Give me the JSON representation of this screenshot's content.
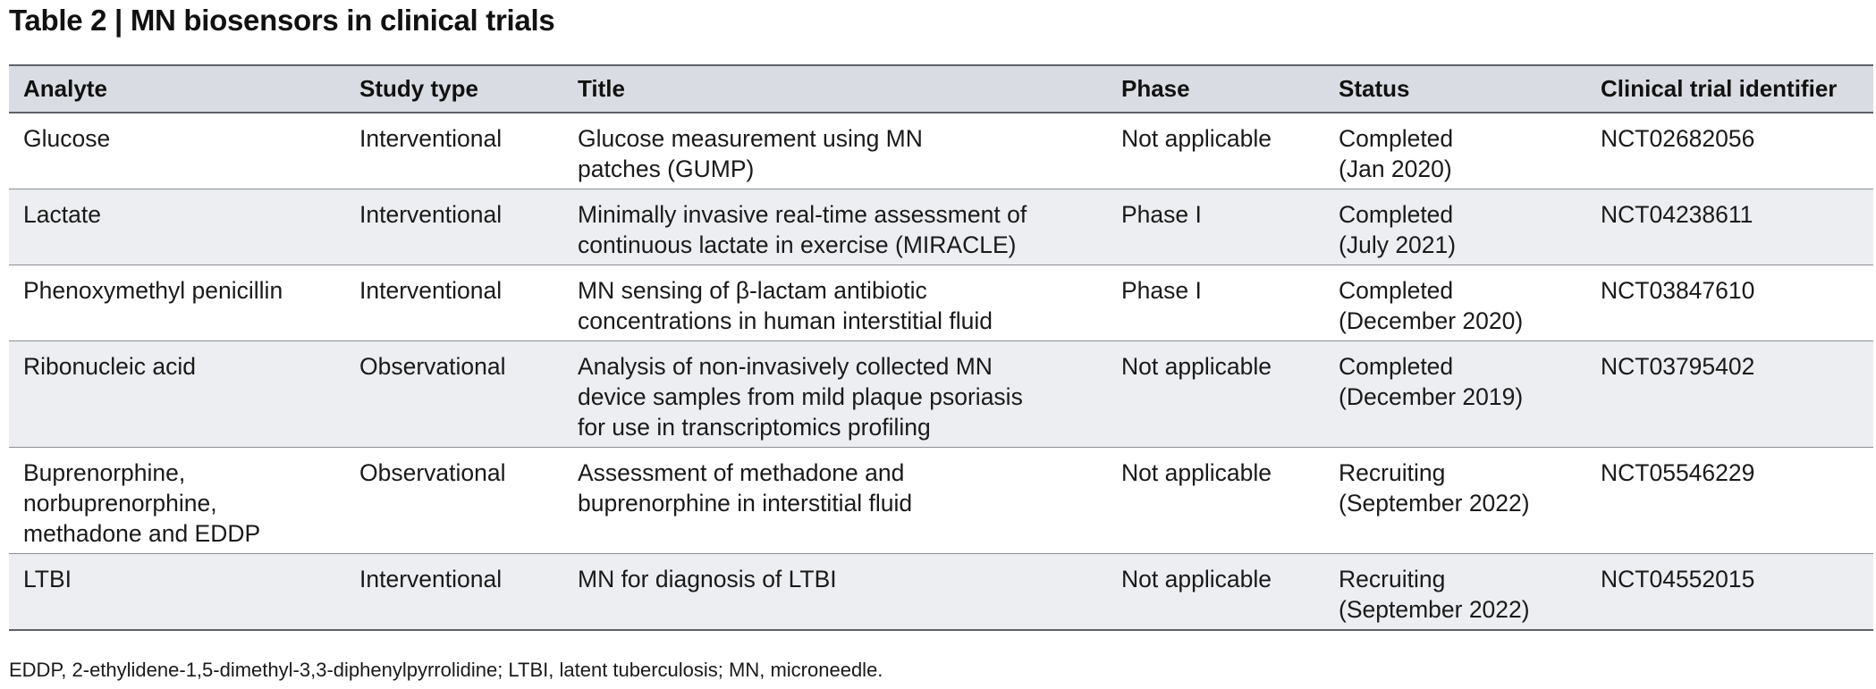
{
  "title": "Table 2 | MN biosensors in clinical trials",
  "columns": [
    "Analyte",
    "Study type",
    "Title",
    "Phase",
    "Status",
    "Clinical trial identifier"
  ],
  "rows": [
    {
      "analyte": [
        "Glucose"
      ],
      "study_type": "Interventional",
      "title": [
        "Glucose measurement using MN",
        "patches (GUMP)"
      ],
      "phase": "Not applicable",
      "status": [
        "Completed",
        "(Jan 2020)"
      ],
      "identifier": "NCT02682056"
    },
    {
      "analyte": [
        "Lactate"
      ],
      "study_type": "Interventional",
      "title": [
        "Minimally invasive real-time assessment of",
        "continuous lactate in exercise (MIRACLE)"
      ],
      "phase": "Phase I",
      "status": [
        "Completed",
        "(July 2021)"
      ],
      "identifier": "NCT04238611"
    },
    {
      "analyte": [
        "Phenoxymethyl penicillin"
      ],
      "study_type": "Interventional",
      "title": [
        "MN sensing of β-lactam antibiotic",
        "concentrations in human interstitial fluid"
      ],
      "phase": "Phase I",
      "status": [
        "Completed",
        "(December 2020)"
      ],
      "identifier": "NCT03847610"
    },
    {
      "analyte": [
        "Ribonucleic acid"
      ],
      "study_type": "Observational",
      "title": [
        "Analysis of non-invasively collected MN",
        "device samples from mild plaque psoriasis",
        "for use in transcriptomics profiling"
      ],
      "phase": "Not applicable",
      "status": [
        "Completed",
        "(December 2019)"
      ],
      "identifier": "NCT03795402"
    },
    {
      "analyte": [
        "Buprenorphine,",
        "norbuprenorphine,",
        "methadone and EDDP"
      ],
      "study_type": "Observational",
      "title": [
        "Assessment of methadone and",
        "buprenorphine in interstitial fluid"
      ],
      "phase": "Not applicable",
      "status": [
        "Recruiting",
        "(September 2022)"
      ],
      "identifier": "NCT05546229"
    },
    {
      "analyte": [
        "LTBI"
      ],
      "study_type": "Interventional",
      "title": [
        "MN for diagnosis of LTBI"
      ],
      "phase": "Not applicable",
      "status": [
        "Recruiting",
        "(September 2022)"
      ],
      "identifier": "NCT04552015"
    }
  ],
  "footnote": "EDDP, 2-ethylidene-1,5-dimethyl-3,3-diphenylpyrrolidine; LTBI, latent tuberculosis; MN, microneedle."
}
